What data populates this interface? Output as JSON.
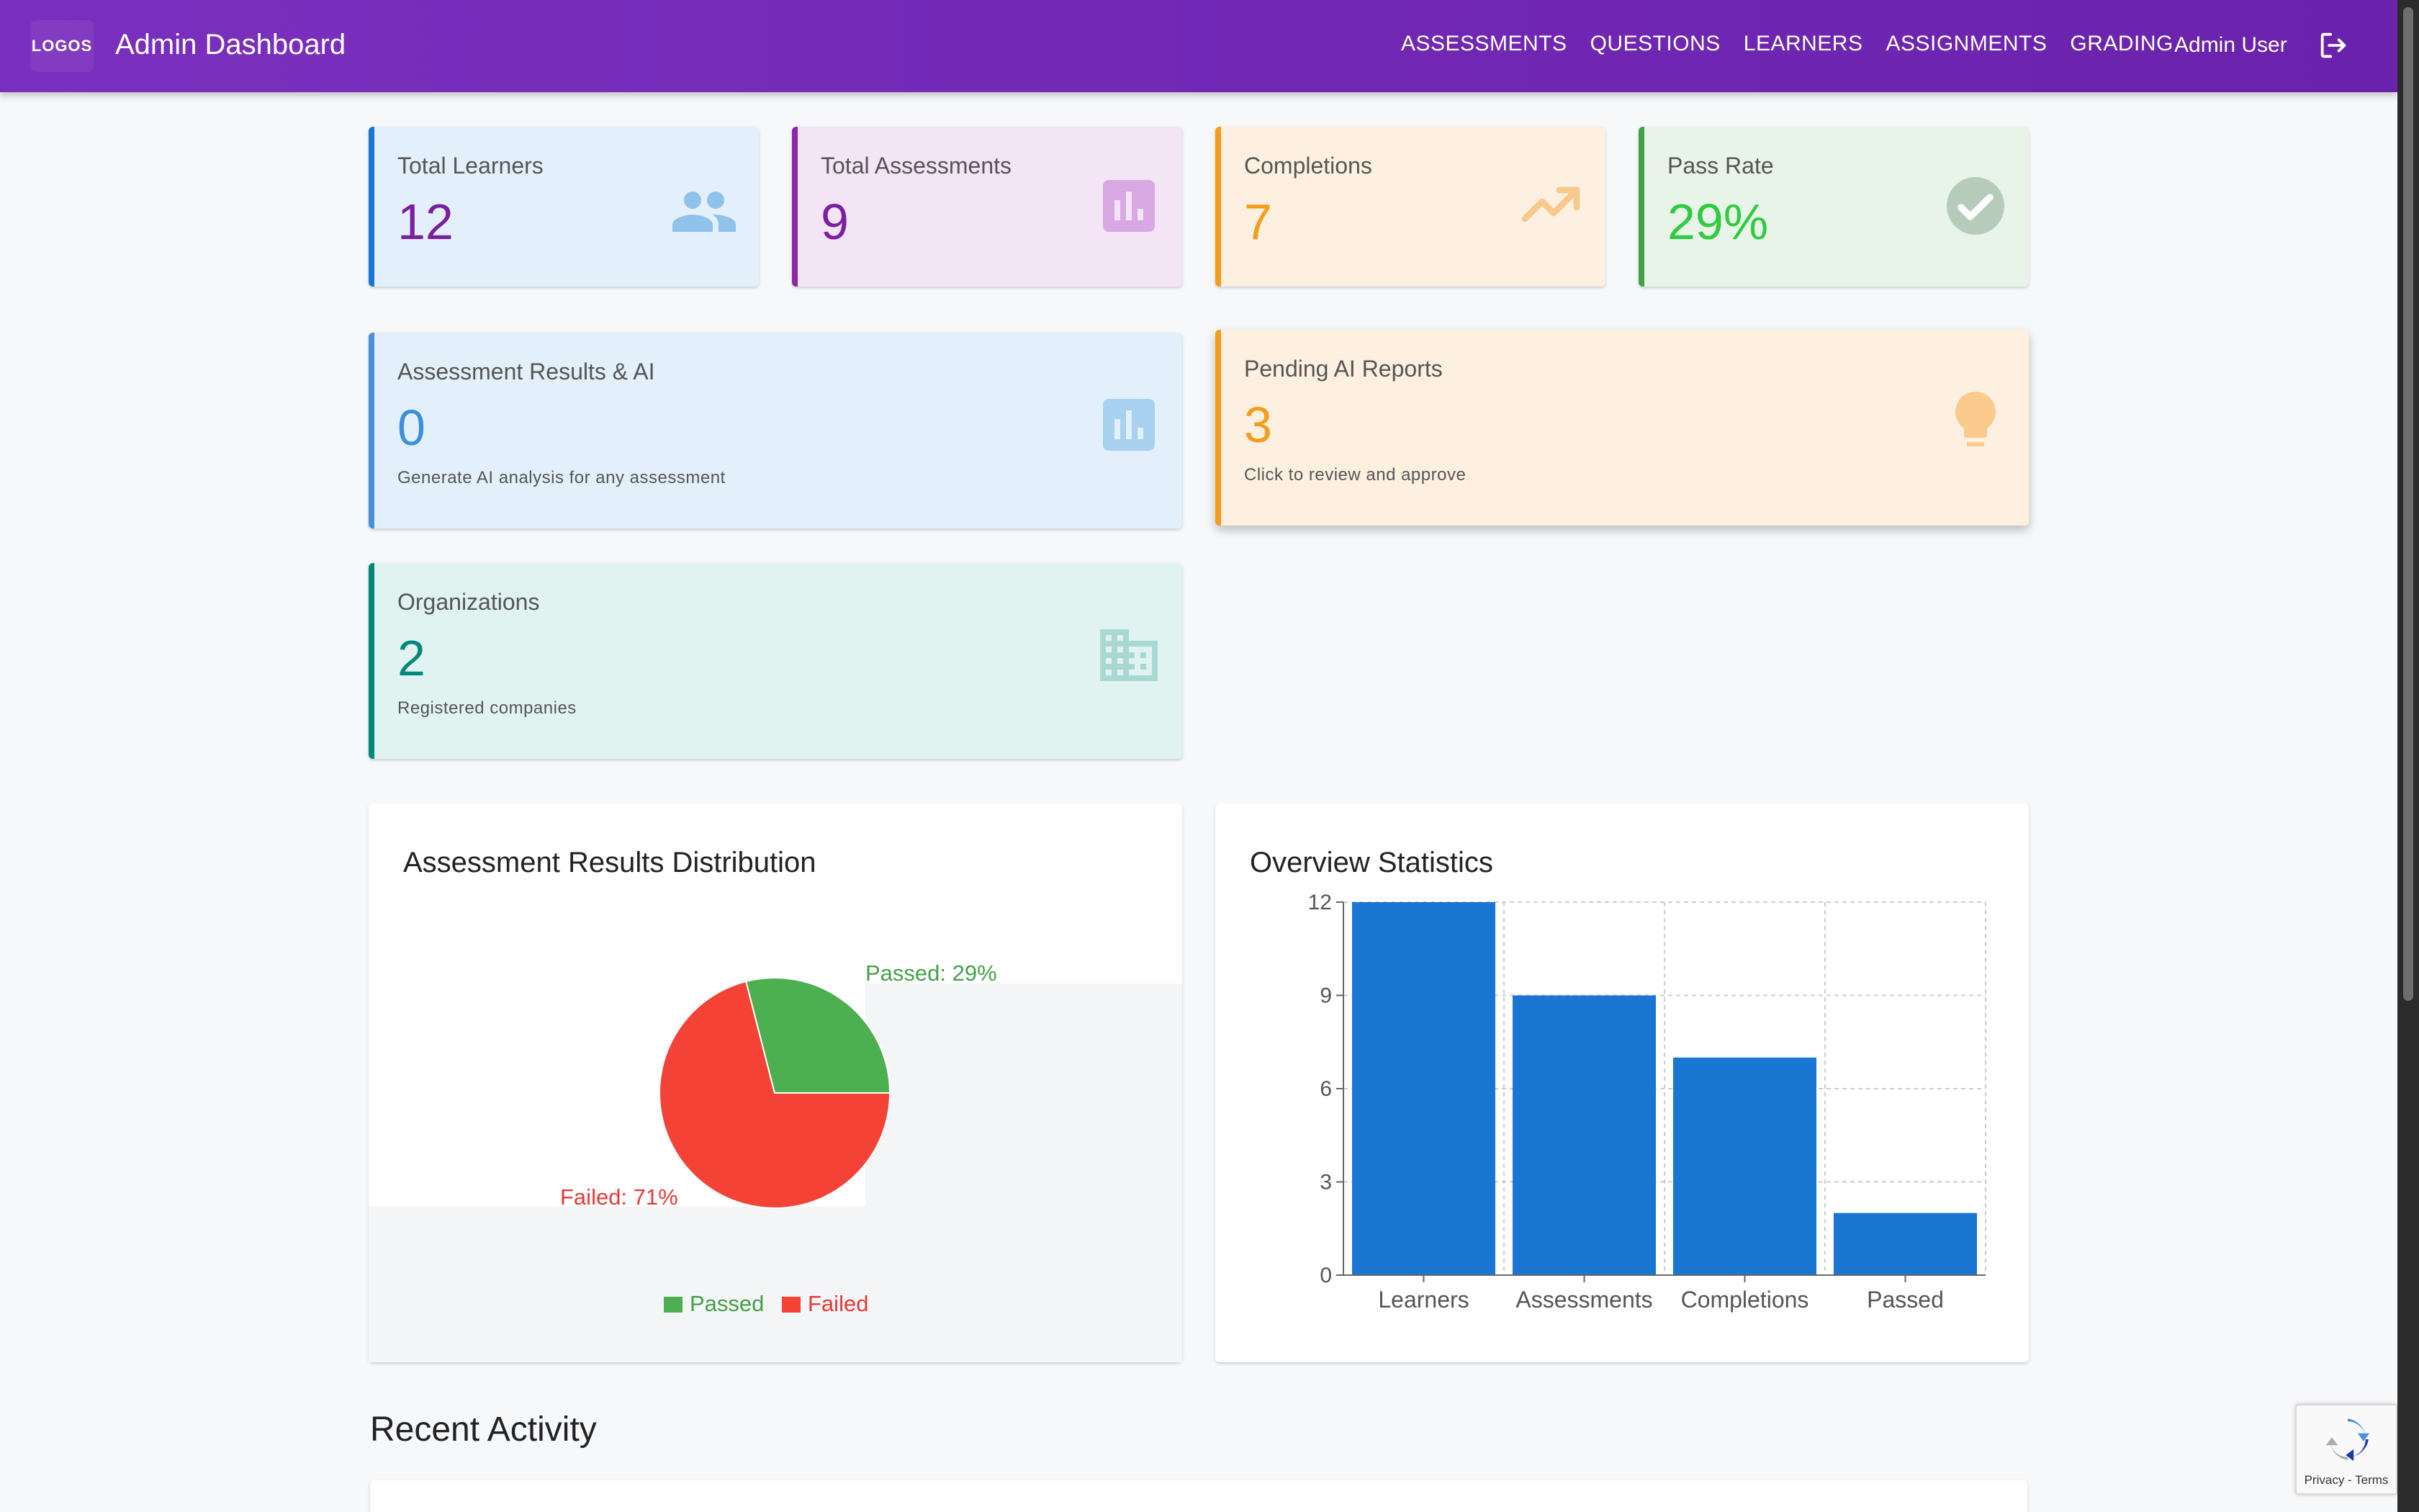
{
  "appbar": {
    "logo_text": "LOGOS",
    "title": "Admin Dashboard",
    "nav": [
      "ASSESSMENTS",
      "QUESTIONS",
      "LEARNERS",
      "ASSIGNMENTS",
      "GRADING"
    ],
    "user": "Admin User",
    "logout_icon": "logout-icon",
    "color": "#7b2fbe"
  },
  "stats": {
    "learners": {
      "title": "Total Learners",
      "value": "12",
      "icon": "people-icon",
      "accent": "#1976d2"
    },
    "assessments": {
      "title": "Total Assessments",
      "value": "9",
      "icon": "bar-chart-icon",
      "accent": "#8e24aa"
    },
    "completions": {
      "title": "Completions",
      "value": "7",
      "icon": "trending-up-icon",
      "accent": "#f59c1a"
    },
    "pass_rate": {
      "title": "Pass Rate",
      "value": "29%",
      "icon": "check-circle-icon",
      "accent": "#2ecc40"
    }
  },
  "ai_results": {
    "title": "Assessment Results & AI",
    "value": "0",
    "subtitle": "Generate AI analysis for any assessment",
    "icon": "bar-chart-icon"
  },
  "pending_reports": {
    "title": "Pending AI Reports",
    "value": "3",
    "subtitle": "Click to review and approve",
    "icon": "lightbulb-icon"
  },
  "organizations": {
    "title": "Organizations",
    "value": "2",
    "subtitle": "Registered companies",
    "icon": "building-icon"
  },
  "pie_panel": {
    "title": "Assessment Results Distribution",
    "labels": {
      "passed": "Passed: 29%",
      "failed": "Failed: 71%"
    },
    "legend": [
      "Passed",
      "Failed"
    ]
  },
  "bar_panel": {
    "title": "Overview Statistics"
  },
  "recent": {
    "title": "Recent Activity"
  },
  "recaptcha": {
    "text": "Privacy - Terms"
  },
  "chart_data": [
    {
      "type": "pie",
      "title": "Assessment Results Distribution",
      "slices": [
        {
          "name": "Passed",
          "value": 29,
          "color": "#4caf50"
        },
        {
          "name": "Failed",
          "value": 71,
          "color": "#f44336"
        }
      ],
      "legend_placement": "bottom"
    },
    {
      "type": "bar",
      "title": "Overview Statistics",
      "categories": [
        "Learners",
        "Assessments",
        "Completions",
        "Passed"
      ],
      "values": [
        12,
        9,
        7,
        2
      ],
      "yticks": [
        0,
        3,
        6,
        9,
        12
      ],
      "ylim": [
        0,
        12
      ],
      "color": "#1976d2",
      "grid": true
    }
  ]
}
